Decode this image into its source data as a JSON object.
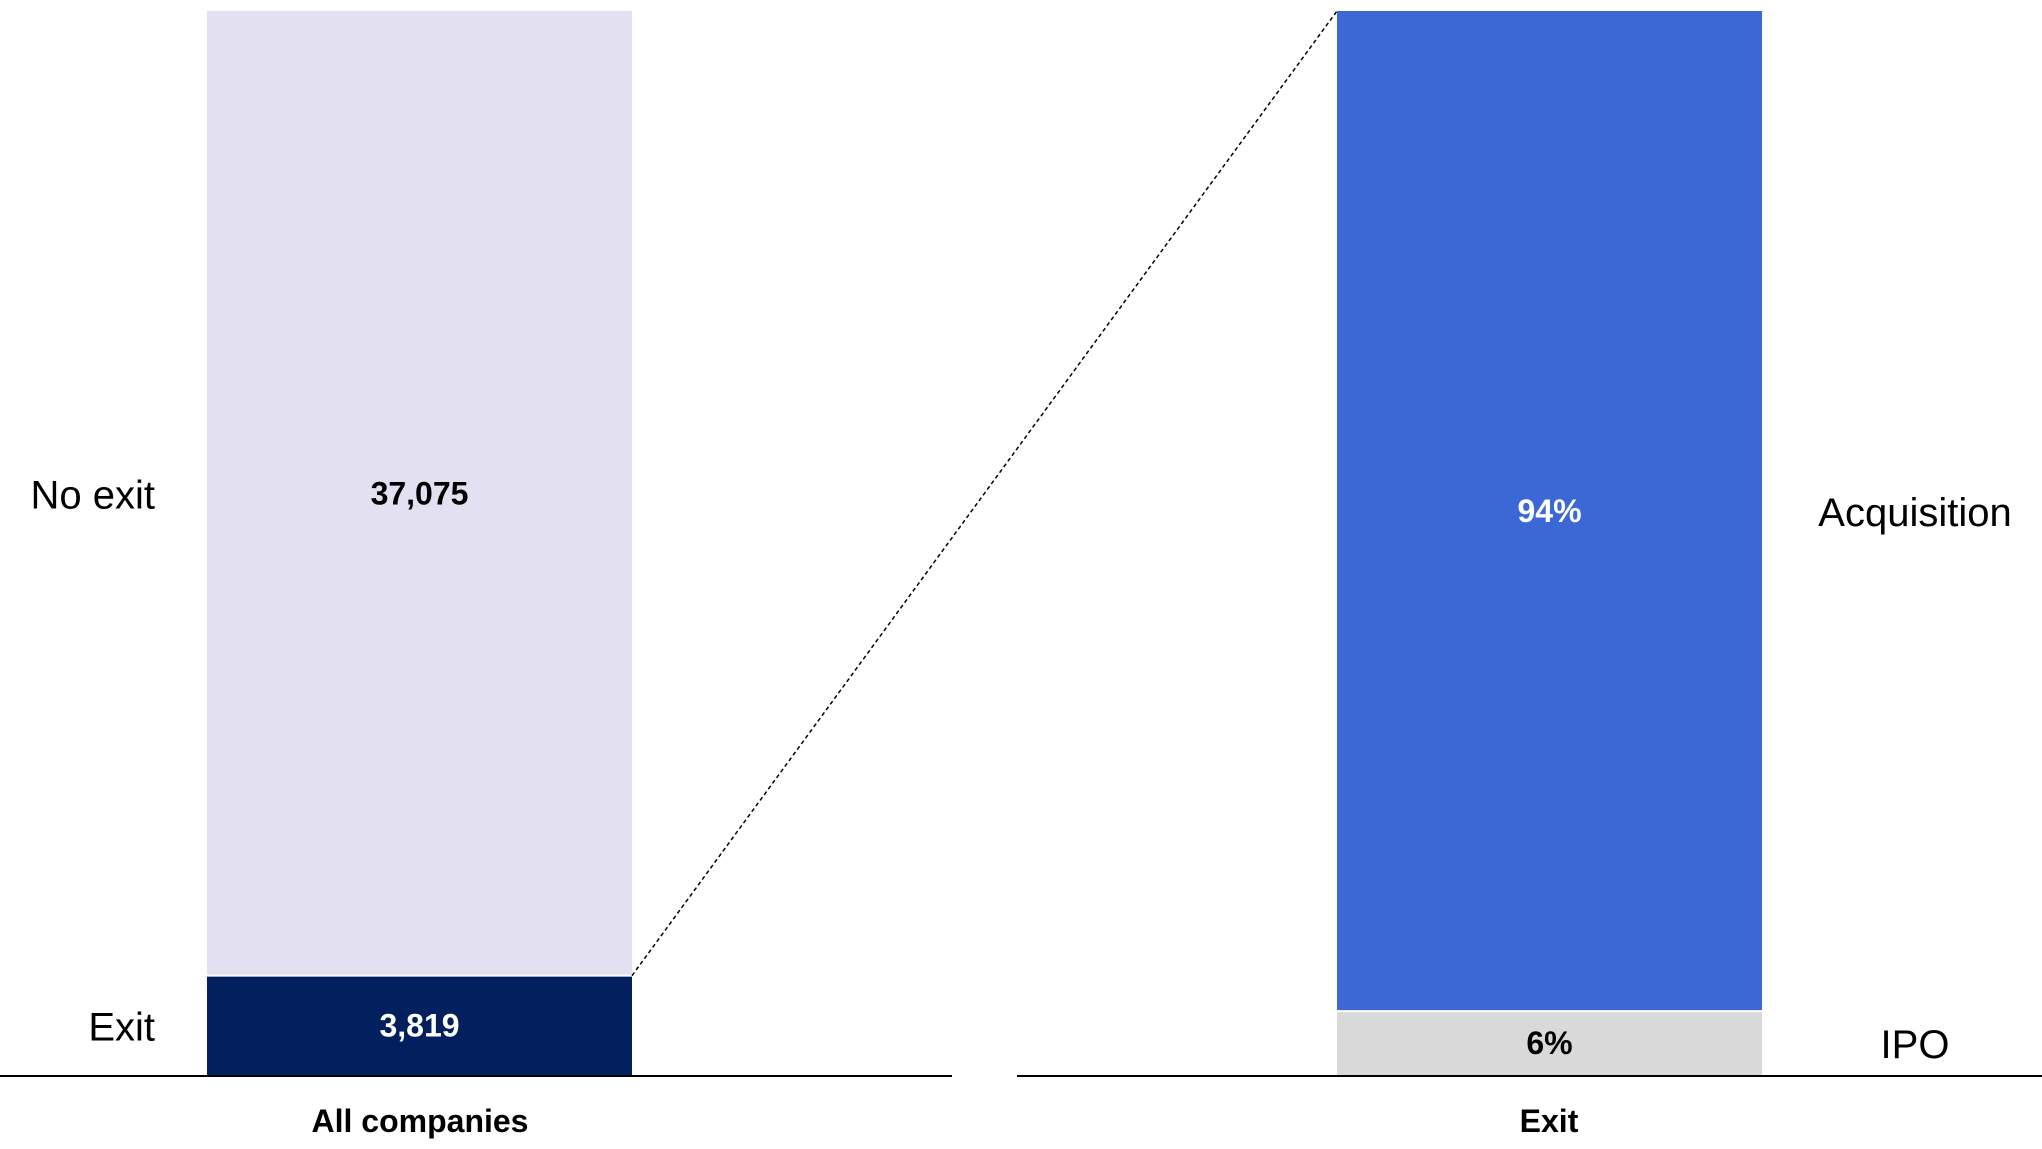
{
  "chart_data": {
    "type": "bar",
    "subtype": "stacked-100-breakdown",
    "title": "",
    "xlabel": "",
    "ylabel": "",
    "grid": false,
    "legend": "none",
    "connector": {
      "style": "dashed",
      "from": "All companies / Exit (top edge)",
      "to": "Exit (top edge)"
    },
    "bars": [
      {
        "category": "All companies",
        "segments": [
          {
            "name": "Exit",
            "value": 3819,
            "value_label": "3,819",
            "color": "#02205E",
            "label_color": "#FFFFFF"
          },
          {
            "name": "No exit",
            "value": 37075,
            "value_label": "37,075",
            "color": "#E2E0F1",
            "label_color": "#000000"
          }
        ]
      },
      {
        "category": "Exit",
        "segments": [
          {
            "name": "IPO",
            "value": 6,
            "value_label": "6%",
            "color": "#D9D9D9",
            "label_color": "#000000"
          },
          {
            "name": "Acquisition",
            "value": 94,
            "value_label": "94%",
            "color": "#3B68D4",
            "label_color": "#FFFFFF"
          }
        ]
      }
    ],
    "axis_color": "#000000"
  }
}
